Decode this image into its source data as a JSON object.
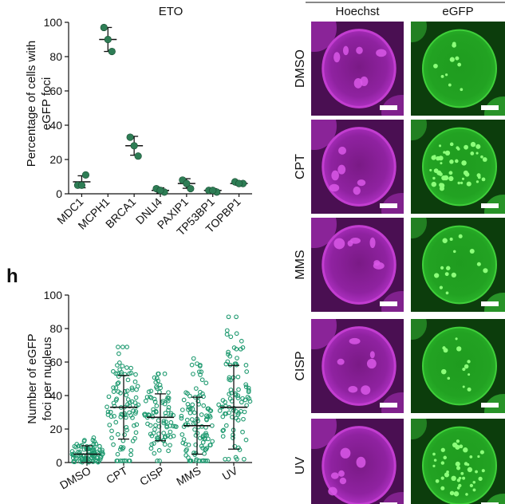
{
  "panel_letter_h": "h",
  "chart_data": [
    {
      "type": "scatter",
      "title": "ETO",
      "ylabel": "Percentage of cells with eGFP foci",
      "ylabel_lines": [
        "Percentage of cells with",
        "eGFP foci"
      ],
      "ylim": [
        0,
        100
      ],
      "yticks": [
        0,
        20,
        40,
        60,
        80,
        100
      ],
      "categories": [
        "MDC1",
        "MCPH1",
        "BRCA1",
        "DNLI4",
        "PAXIP1",
        "TP53BP1",
        "TOPBP1"
      ],
      "points": [
        [
          5,
          11,
          5
        ],
        [
          97,
          83,
          90
        ],
        [
          33,
          22,
          28
        ],
        [
          3,
          1,
          2
        ],
        [
          8,
          3,
          6
        ],
        [
          2,
          1,
          2
        ],
        [
          7,
          6,
          6
        ]
      ],
      "means": [
        7,
        90,
        28,
        2,
        6,
        2,
        6
      ],
      "errors": [
        3.5,
        7,
        5.5,
        1.5,
        2.8,
        1,
        1
      ],
      "color": "#2e7d55",
      "grid": false
    },
    {
      "type": "scatter",
      "ylabel": "Number of eGFP foci per nucleus",
      "ylabel_lines": [
        "Number of eGFP",
        "foci per nucleus"
      ],
      "ylim": [
        0,
        100
      ],
      "yticks": [
        0,
        20,
        40,
        60,
        80,
        100
      ],
      "categories": [
        "DMSO",
        "CPT",
        "CISP",
        "MMS",
        "UV"
      ],
      "means": [
        5,
        33,
        27,
        22,
        33
      ],
      "sd": [
        5,
        19,
        14,
        17,
        25
      ],
      "ranges": [
        [
          0,
          21
        ],
        [
          1,
          69
        ],
        [
          1,
          53
        ],
        [
          1,
          67
        ],
        [
          2,
          87
        ]
      ],
      "color": "#1f9a70",
      "grid": false
    }
  ],
  "micrographs": {
    "col_headers": [
      "Hoechst",
      "eGFP"
    ],
    "rows": [
      "DMSO",
      "CPT",
      "MMS",
      "CISP",
      "UV"
    ],
    "colors": {
      "hoechst": "#c23dd0",
      "egfp": "#3fcf3a"
    }
  }
}
